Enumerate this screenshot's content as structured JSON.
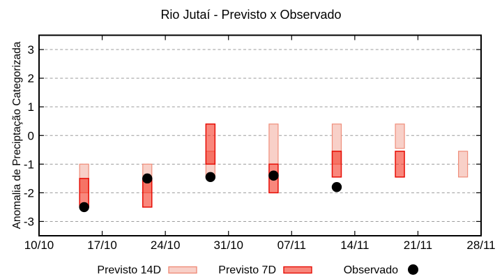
{
  "chart_data": {
    "type": "range-bar",
    "title": "Rio Jutaí - Previsto x Observado",
    "ylabel": "Anomalia de Preciptação Categorizada",
    "xlabel": "",
    "ylim": [
      -3.5,
      3.5
    ],
    "yticks": [
      3,
      2,
      1,
      0,
      -1,
      -2,
      -3
    ],
    "x_axis": {
      "tick_labels": [
        "10/10",
        "17/10",
        "24/10",
        "31/10",
        "07/11",
        "14/11",
        "21/11",
        "28/11"
      ],
      "tick_days": [
        0,
        7,
        14,
        21,
        28,
        35,
        42,
        49
      ],
      "day_range": [
        0,
        49
      ]
    },
    "grid": "horizontal-dashed",
    "legend": {
      "position": "below-plot",
      "items": [
        {
          "label": "Previsto 14D",
          "swatch": "box",
          "fill": "#f8d0c8",
          "border": "#ef8d7a"
        },
        {
          "label": "Previsto 7D",
          "swatch": "box",
          "fill": "#f8877c",
          "border": "#e60d05"
        },
        {
          "label": "Observado",
          "swatch": "dot",
          "fill": "#000000"
        }
      ]
    },
    "series_notes": "previsto ranges are [upper, lower] in category units; observado is a point value; null = not shown",
    "points": [
      {
        "date": "15/10",
        "day": 5,
        "previsto_14d": [
          -1.0,
          -2.0
        ],
        "previsto_7d": [
          -1.5,
          -2.5
        ],
        "observado": -2.5
      },
      {
        "date": "22/10",
        "day": 12,
        "previsto_14d": [
          -1.0,
          -2.0
        ],
        "previsto_7d": [
          -1.5,
          -2.5
        ],
        "observado": -1.5
      },
      {
        "date": "29/10",
        "day": 19,
        "previsto_14d": [
          -0.55,
          -1.45
        ],
        "previsto_7d": [
          0.4,
          -1.0
        ],
        "observado": -1.45
      },
      {
        "date": "05/11",
        "day": 26,
        "previsto_14d": [
          0.4,
          -1.0
        ],
        "previsto_7d": [
          -1.0,
          -2.0
        ],
        "observado": -1.4
      },
      {
        "date": "12/11",
        "day": 33,
        "previsto_14d": [
          0.4,
          -1.0
        ],
        "previsto_7d": [
          -0.55,
          -1.45
        ],
        "observado": -1.8
      },
      {
        "date": "19/11",
        "day": 40,
        "previsto_14d": [
          0.4,
          -0.45
        ],
        "previsto_7d": [
          -0.55,
          -1.45
        ],
        "observado": null
      },
      {
        "date": "26/11",
        "day": 47,
        "previsto_14d": [
          -0.55,
          -1.45
        ],
        "previsto_7d": null,
        "observado": null
      }
    ],
    "colors": {
      "p14_fill": "#f8d0c8",
      "p14_border": "#ef8d7a",
      "p7_fill_rgba": "rgba(244,48,30,0.58)",
      "p7_solid": "#f8877c",
      "p7_border": "#e60d05",
      "obs": "#000000",
      "grid": "#9b9b9b",
      "axis": "#000000"
    }
  }
}
